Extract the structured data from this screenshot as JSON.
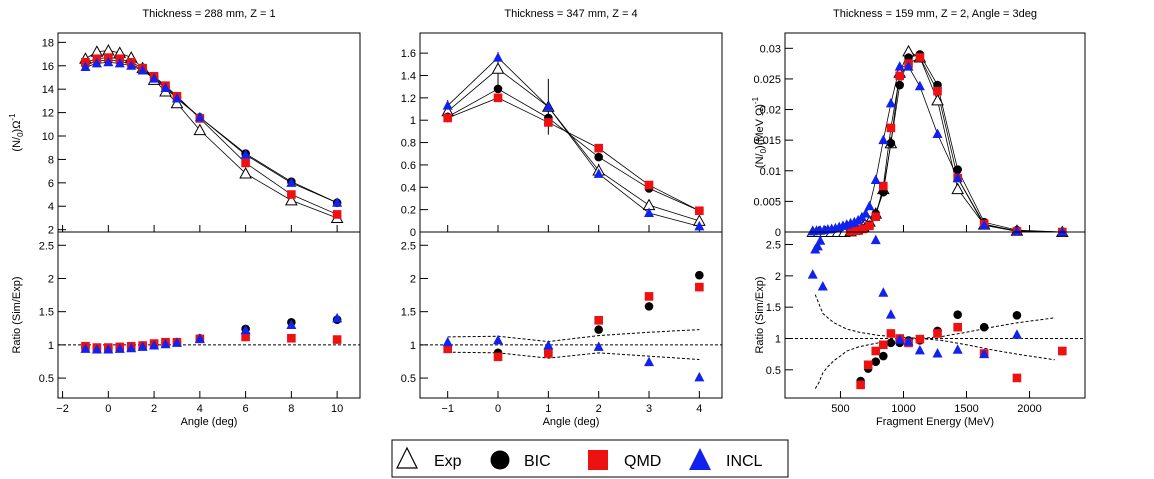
{
  "colors": {
    "exp": "#000000",
    "bic": "#000000",
    "qmd": "#ee1111",
    "incl": "#1122ee",
    "ref": "#000000"
  },
  "legend": {
    "entries": [
      {
        "key": "exp",
        "label": "Exp",
        "marker": "open-triangle"
      },
      {
        "key": "bic",
        "label": "BIC",
        "marker": "circle"
      },
      {
        "key": "qmd",
        "label": "QMD",
        "marker": "square"
      },
      {
        "key": "incl",
        "label": "INCL",
        "marker": "filled-triangle"
      }
    ]
  },
  "chart_data": [
    {
      "type": "scatter",
      "title": "Thickness = 288 mm, Z = 1",
      "xlabel": "Angle (deg)",
      "top": {
        "ylabel": "(N/N0)Ω-1",
        "ylim": [
          1.8,
          18.8
        ],
        "yticks": [
          "2",
          "4",
          "6",
          "8",
          "10",
          "12",
          "14",
          "16",
          "18"
        ],
        "connect_lines": true,
        "series": [
          {
            "key": "exp",
            "x": [
              -1,
              -0.5,
              0,
              0.5,
              1,
              1.5,
              2,
              2.5,
              3,
              4,
              6,
              8,
              10
            ],
            "y": [
              16.6,
              17.2,
              17.3,
              17.1,
              16.7,
              15.8,
              14.8,
              13.8,
              12.8,
              10.5,
              6.8,
              4.5,
              3.0
            ]
          },
          {
            "key": "bic",
            "x": [
              -1,
              -0.5,
              0,
              0.5,
              1,
              1.5,
              2,
              2.5,
              3,
              4,
              6,
              8,
              10
            ],
            "y": [
              16.1,
              16.4,
              16.5,
              16.4,
              16.1,
              15.7,
              15.0,
              14.2,
              13.3,
              11.6,
              8.5,
              6.1,
              4.3
            ]
          },
          {
            "key": "qmd",
            "x": [
              -1,
              -0.5,
              0,
              0.5,
              1,
              1.5,
              2,
              2.5,
              3,
              4,
              6,
              8,
              10
            ],
            "y": [
              16.3,
              16.6,
              16.7,
              16.6,
              16.3,
              15.8,
              15.1,
              14.3,
              13.4,
              11.5,
              7.7,
              5.0,
              3.3
            ]
          },
          {
            "key": "incl",
            "x": [
              -1,
              -0.5,
              0,
              0.5,
              1,
              1.5,
              2,
              2.5,
              3,
              4,
              6,
              8,
              10
            ],
            "y": [
              15.9,
              16.2,
              16.3,
              16.2,
              16.0,
              15.6,
              14.9,
              14.1,
              13.2,
              11.6,
              8.4,
              6.0,
              4.3
            ]
          }
        ]
      },
      "bottom": {
        "ylabel": "Ratio (Sim/Exp)",
        "ylim": [
          0.2,
          2.7
        ],
        "yticks": [
          "0.5",
          "1",
          "1.5",
          "2",
          "2.5"
        ],
        "reference_line": 1,
        "series": [
          {
            "key": "bic",
            "x": [
              -1,
              -0.5,
              0,
              0.5,
              1,
              1.5,
              2,
              2.5,
              3,
              4,
              6,
              8,
              10
            ],
            "y": [
              0.97,
              0.95,
              0.95,
              0.96,
              0.97,
              0.99,
              1.01,
              1.03,
              1.04,
              1.1,
              1.24,
              1.34,
              1.38
            ]
          },
          {
            "key": "qmd",
            "x": [
              -1,
              -0.5,
              0,
              0.5,
              1,
              1.5,
              2,
              2.5,
              3,
              4,
              6,
              8,
              10
            ],
            "y": [
              0.98,
              0.96,
              0.96,
              0.97,
              0.98,
              0.99,
              1.02,
              1.04,
              1.04,
              1.09,
              1.12,
              1.1,
              1.08
            ]
          },
          {
            "key": "incl",
            "x": [
              -1,
              -0.5,
              0,
              0.5,
              1,
              1.5,
              2,
              2.5,
              3,
              4,
              6,
              8,
              10
            ],
            "y": [
              0.94,
              0.93,
              0.93,
              0.94,
              0.95,
              0.97,
              0.99,
              1.01,
              1.03,
              1.09,
              1.22,
              1.3,
              1.4
            ]
          }
        ]
      },
      "xlim": [
        -2.2,
        11.0
      ],
      "xticks": [
        "−2",
        "0",
        "2",
        "4",
        "6",
        "8",
        "10"
      ]
    },
    {
      "type": "scatter",
      "title": "Thickness = 347 mm, Z = 4",
      "xlabel": "Angle (deg)",
      "top": {
        "ylabel": "",
        "ylim": [
          0,
          1.78
        ],
        "yticks": [
          "0",
          "0.2",
          "0.4",
          "0.6",
          "0.8",
          "1",
          "1.2",
          "1.4",
          "1.6"
        ],
        "connect_lines": true,
        "series": [
          {
            "key": "exp",
            "x": [
              -1,
              0,
              1,
              2,
              3,
              4
            ],
            "y": [
              1.08,
              1.46,
              1.12,
              0.55,
              0.24,
              0.1
            ],
            "err": [
              0.1,
              0.15,
              0.25,
              0.06,
              0.03,
              0.02
            ]
          },
          {
            "key": "bic",
            "x": [
              -1,
              0,
              1,
              2,
              3,
              4
            ],
            "y": [
              1.03,
              1.28,
              1.02,
              0.67,
              0.39,
              0.19
            ]
          },
          {
            "key": "qmd",
            "x": [
              -1,
              0,
              1,
              2,
              3,
              4
            ],
            "y": [
              1.02,
              1.2,
              0.98,
              0.75,
              0.42,
              0.19
            ]
          },
          {
            "key": "incl",
            "x": [
              -1,
              0,
              1,
              2,
              3,
              4
            ],
            "y": [
              1.13,
              1.56,
              1.12,
              0.52,
              0.17,
              0.05
            ]
          }
        ]
      },
      "bottom": {
        "ylabel": "",
        "ylim": [
          0.2,
          2.7
        ],
        "yticks": [
          "0.5",
          "1",
          "1.5",
          "2",
          "2.5"
        ],
        "reference_line": 1,
        "band": {
          "x": [
            -1,
            0,
            1,
            2,
            3,
            4
          ],
          "upper": [
            1.12,
            1.13,
            1.05,
            1.14,
            1.19,
            1.23
          ],
          "lower": [
            0.89,
            0.88,
            0.8,
            0.88,
            0.83,
            0.78
          ]
        },
        "series": [
          {
            "key": "bic",
            "x": [
              -1,
              0,
              1,
              2,
              3,
              4
            ],
            "y": [
              0.95,
              0.88,
              0.89,
              1.23,
              1.58,
              2.05
            ]
          },
          {
            "key": "qmd",
            "x": [
              -1,
              0,
              1,
              2,
              3,
              4
            ],
            "y": [
              0.94,
              0.82,
              0.87,
              1.37,
              1.73,
              1.87
            ]
          },
          {
            "key": "incl",
            "x": [
              -1,
              0,
              1,
              2,
              3,
              4
            ],
            "y": [
              1.04,
              1.07,
              0.99,
              0.97,
              0.74,
              0.51
            ]
          }
        ]
      },
      "xlim": [
        -1.55,
        4.45
      ],
      "xticks": [
        "−1",
        "0",
        "1",
        "2",
        "3",
        "4"
      ]
    },
    {
      "type": "scatter",
      "title": "Thickness = 159 mm, Z = 2, Angle = 3deg",
      "xlabel": "Fragment Energy (MeV)",
      "top": {
        "ylabel": "(N/N0)(MeV Ω)-1",
        "ylim": [
          0,
          0.0325
        ],
        "yticks": [
          "0",
          "0.005",
          "0.01",
          "0.015",
          "0.02",
          "0.025",
          "0.03"
        ],
        "connect_lines": true,
        "series": [
          {
            "key": "exp",
            "x": [
              280,
              330,
              380,
              430,
              480,
              530,
              580,
              630,
              680,
              730,
              780,
              840,
              900,
              970,
              1040,
              1130,
              1270,
              1430,
              1640,
              1900,
              2260
            ],
            "y": [
              0,
              0,
              0,
              0,
              0,
              0,
              0.0001,
              0.0004,
              0.0009,
              0.0017,
              0.003,
              0.007,
              0.0145,
              0.026,
              0.0295,
              0.0285,
              0.0215,
              0.007,
              0.0012,
              0.0002,
              0
            ]
          },
          {
            "key": "bic",
            "x": [
              580,
              630,
              680,
              730,
              780,
              840,
              900,
              970,
              1040,
              1130,
              1270,
              1430,
              1640,
              1900,
              2260
            ],
            "y": [
              0.0001,
              0.0003,
              0.0006,
              0.0012,
              0.003,
              0.0065,
              0.0145,
              0.024,
              0.0285,
              0.029,
              0.024,
              0.0102,
              0.0016,
              0.0003,
              0
            ]
          },
          {
            "key": "qmd",
            "x": [
              580,
              630,
              680,
              730,
              780,
              840,
              900,
              970,
              1040,
              1130,
              1270,
              1430,
              1640,
              1900,
              2260
            ],
            "y": [
              0.0001,
              0.0002,
              0.0005,
              0.001,
              0.0025,
              0.0075,
              0.017,
              0.0255,
              0.0275,
              0.0285,
              0.023,
              0.0088,
              0.0013,
              0.0001,
              0
            ]
          },
          {
            "key": "incl",
            "x": [
              280,
              310,
              340,
              370,
              400,
              430,
              460,
              490,
              520,
              550,
              580,
              610,
              640,
              670,
              700,
              730,
              780,
              840,
              900,
              970,
              1040,
              1130,
              1270,
              1430,
              1640,
              1900,
              2260
            ],
            "y": [
              0.0001,
              0.0002,
              0.0002,
              0.0003,
              0.0004,
              0.0005,
              0.0006,
              0.0008,
              0.001,
              0.0012,
              0.0014,
              0.0016,
              0.0019,
              0.0024,
              0.003,
              0.0042,
              0.0085,
              0.015,
              0.021,
              0.027,
              0.027,
              0.0238,
              0.016,
              0.0088,
              0.0011,
              0.0001,
              0
            ]
          }
        ]
      },
      "bottom": {
        "ylabel": "Ratio (Sim/Exp)",
        "ylim": [
          0.05,
          2.7
        ],
        "yticks": [
          "0.5",
          "1",
          "1.5",
          "2",
          "2.5"
        ],
        "reference_line": 1,
        "band": {
          "x": [
            300,
            330,
            360,
            400,
            450,
            500,
            550,
            650,
            800,
            1000,
            1130,
            1300,
            1500,
            1700,
            1900,
            2200
          ],
          "upper": [
            1.7,
            1.55,
            1.4,
            1.33,
            1.25,
            1.2,
            1.15,
            1.1,
            1.05,
            1.02,
            1.0,
            1.03,
            1.1,
            1.18,
            1.25,
            1.33
          ],
          "lower": [
            0.2,
            0.3,
            0.45,
            0.55,
            0.65,
            0.72,
            0.8,
            0.87,
            0.93,
            0.97,
            1.0,
            0.97,
            0.9,
            0.82,
            0.75,
            0.66
          ]
        },
        "series": [
          {
            "key": "bic",
            "x": [
              660,
              720,
              780,
              840,
              900,
              970,
              1040,
              1130,
              1270,
              1430,
              1640,
              1900,
              2260
            ],
            "y": [
              0.32,
              0.52,
              0.63,
              0.72,
              0.93,
              0.93,
              0.97,
              0.97,
              1.12,
              1.38,
              1.18,
              1.37,
              0.8
            ]
          },
          {
            "key": "qmd",
            "x": [
              660,
              720,
              780,
              840,
              900,
              970,
              1040,
              1130,
              1270,
              1430,
              1640,
              1900,
              2260
            ],
            "y": [
              0.26,
              0.58,
              0.8,
              0.9,
              1.08,
              1.0,
              0.93,
              0.99,
              1.08,
              1.18,
              0.76,
              0.37,
              0.8
            ]
          },
          {
            "key": "incl",
            "x": [
              280,
              300,
              320,
              340,
              360,
              780,
              840,
              900,
              970,
              1040,
              1130,
              1270,
              1430,
              1640,
              1900
            ],
            "y": [
              2.02,
              2.42,
              2.47,
              2.56,
              1.83,
              2.57,
              1.73,
              1.38,
              0.98,
              0.95,
              0.81,
              0.76,
              0.82,
              0.75,
              1.06
            ]
          }
        ]
      },
      "xlim": [
        60,
        2440
      ],
      "xticks": [
        "500",
        "1000",
        "1500",
        "2000"
      ]
    }
  ]
}
